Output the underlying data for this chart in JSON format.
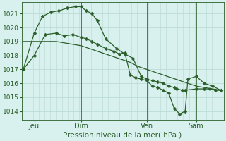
{
  "bg_color": "#d8f0ee",
  "grid_color_major": "#b8d8d0",
  "grid_color_minor": "#cce8e0",
  "line_color": "#2a5e2a",
  "xlabel": "Pression niveau de la mer( hPa )",
  "tick_color": "#2a5e2a",
  "ylim": [
    1013.4,
    1021.8
  ],
  "yticks": [
    1014,
    1015,
    1016,
    1017,
    1018,
    1019,
    1020,
    1021
  ],
  "xlim": [
    -0.3,
    36.5
  ],
  "day_labels": [
    "Jeu",
    "Dim",
    "Ven",
    "Sam"
  ],
  "vline_positions": [
    2.0,
    10.5,
    22.5,
    31.5
  ],
  "s1_x": [
    0,
    1.5,
    3,
    4.5,
    6,
    7.5,
    9,
    10.5,
    12,
    13.5,
    15,
    16.5,
    18,
    19.5,
    21,
    22.5,
    24,
    25.5,
    27,
    28.5,
    30,
    31.5,
    33,
    34.5,
    36
  ],
  "s1_y": [
    1019.0,
    1019.0,
    1019.0,
    1019.0,
    1019.0,
    1018.9,
    1018.8,
    1018.7,
    1018.5,
    1018.3,
    1018.1,
    1017.9,
    1017.7,
    1017.5,
    1017.2,
    1017.0,
    1016.8,
    1016.6,
    1016.4,
    1016.2,
    1016.0,
    1015.8,
    1015.7,
    1015.6,
    1015.5
  ],
  "s2_x": [
    0,
    2,
    3.5,
    5,
    6.5,
    8,
    9.5,
    10.5,
    11.5,
    12.5,
    13.5,
    15,
    17,
    18.5,
    20,
    21.5,
    22.5,
    23.5,
    24.5,
    25.5,
    26.5,
    27.5,
    28,
    29,
    29.5,
    31.5,
    33,
    34,
    35,
    36
  ],
  "s2_y": [
    1017.0,
    1019.6,
    1020.8,
    1021.1,
    1021.2,
    1021.4,
    1021.5,
    1021.5,
    1021.2,
    1021.0,
    1020.5,
    1019.2,
    1018.5,
    1018.1,
    1017.8,
    1016.5,
    1016.3,
    1016.2,
    1016.1,
    1016.0,
    1015.8,
    1015.7,
    1015.6,
    1015.5,
    1015.5,
    1015.6,
    1015.6,
    1015.6,
    1015.5,
    1015.5
  ],
  "s3_x": [
    0,
    2,
    4,
    6,
    7.5,
    9,
    10.5,
    11.5,
    12.5,
    13.5,
    15,
    16.5,
    17.5,
    18.5,
    19.5,
    20.5,
    21.5,
    22.5,
    23.5,
    24.5,
    25.5,
    26.5,
    27.5,
    28.5,
    29.5,
    30,
    31.5,
    33,
    34.5,
    36
  ],
  "s3_y": [
    1017.0,
    1018.0,
    1019.5,
    1019.6,
    1019.4,
    1019.5,
    1019.3,
    1019.2,
    1019.0,
    1018.8,
    1018.5,
    1018.3,
    1018.1,
    1018.2,
    1016.6,
    1016.4,
    1016.3,
    1016.2,
    1015.8,
    1015.7,
    1015.5,
    1015.3,
    1014.2,
    1013.8,
    1014.0,
    1016.3,
    1016.5,
    1016.0,
    1015.8,
    1015.5
  ]
}
